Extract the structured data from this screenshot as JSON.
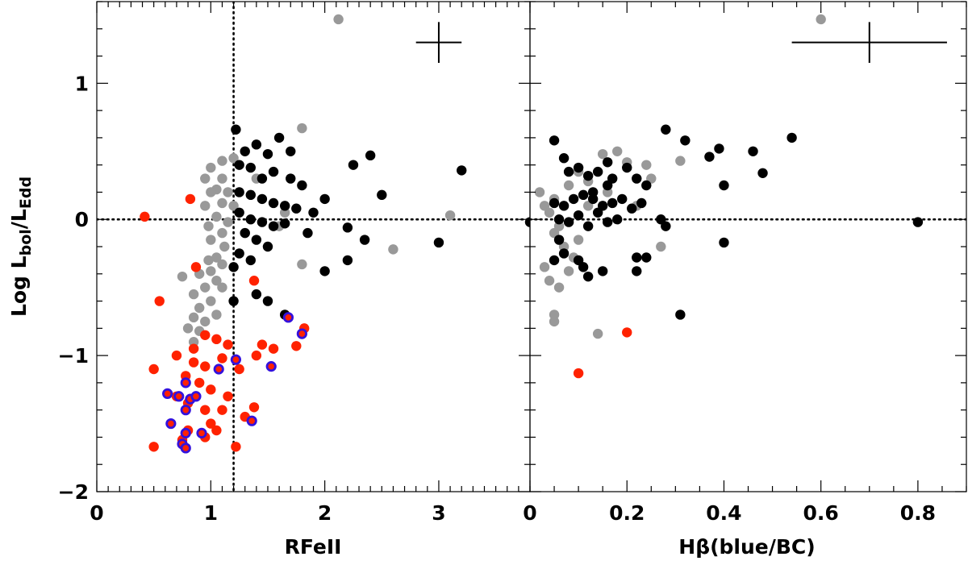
{
  "figure": {
    "ylabel": "Log L_bol/L_Edd",
    "ylabel_parts": {
      "log": "Log ",
      "l1": "L",
      "s1": "bol",
      "sep": "/",
      "l2": "L",
      "s2": "Edd"
    },
    "colors": {
      "gray": "#999999",
      "black": "#000000",
      "red": "#ff2200",
      "blue_ring": "#3311dd",
      "axis": "#000000"
    }
  },
  "chart_data": [
    {
      "type": "scatter",
      "xlabel": "RFeII",
      "ylabel": "Log L_bol/L_Edd",
      "xlim": [
        0,
        3.8
      ],
      "ylim": [
        -2,
        1.6
      ],
      "xticks": [
        0,
        1,
        2,
        3
      ],
      "xtick_labels": [
        "0",
        "1",
        "2",
        "3"
      ],
      "yticks": [
        -2,
        -1,
        0,
        1
      ],
      "ytick_labels": [
        "−2",
        "−1",
        "0",
        "1"
      ],
      "grid": false,
      "reference_lines": {
        "vertical_x": 1.2,
        "horizontal_y": 0
      },
      "error_bar": {
        "x": 3.0,
        "y": 1.3,
        "xerr": 0.2,
        "yerr": 0.15
      },
      "series": [
        {
          "color_role": "gray",
          "points": [
            [
              2.12,
              1.47
            ],
            [
              1.8,
              0.67
            ],
            [
              1.2,
              0.45
            ],
            [
              1.1,
              0.43
            ],
            [
              1.0,
              0.38
            ],
            [
              0.95,
              0.3
            ],
            [
              1.1,
              0.3
            ],
            [
              1.05,
              0.22
            ],
            [
              1.0,
              0.2
            ],
            [
              1.15,
              0.2
            ],
            [
              0.95,
              0.1
            ],
            [
              1.1,
              0.12
            ],
            [
              1.05,
              0.02
            ],
            [
              0.98,
              -0.05
            ],
            [
              1.15,
              -0.02
            ],
            [
              1.1,
              -0.1
            ],
            [
              1.0,
              -0.15
            ],
            [
              1.12,
              -0.2
            ],
            [
              1.05,
              -0.28
            ],
            [
              0.98,
              -0.3
            ],
            [
              1.1,
              -0.33
            ],
            [
              1.0,
              -0.38
            ],
            [
              0.9,
              -0.4
            ],
            [
              0.75,
              -0.42
            ],
            [
              1.05,
              -0.45
            ],
            [
              0.95,
              -0.5
            ],
            [
              1.1,
              -0.5
            ],
            [
              0.85,
              -0.55
            ],
            [
              1.0,
              -0.6
            ],
            [
              0.9,
              -0.65
            ],
            [
              1.05,
              -0.7
            ],
            [
              0.85,
              -0.72
            ],
            [
              0.95,
              -0.75
            ],
            [
              0.8,
              -0.8
            ],
            [
              0.9,
              -0.82
            ],
            [
              0.85,
              -0.9
            ],
            [
              1.8,
              -0.33
            ],
            [
              1.65,
              0.05
            ],
            [
              1.4,
              0.3
            ],
            [
              1.6,
              -0.05
            ],
            [
              2.6,
              -0.22
            ],
            [
              3.1,
              0.03
            ],
            [
              1.3,
              -0.1
            ],
            [
              1.2,
              0.1
            ]
          ]
        },
        {
          "color_role": "black",
          "points": [
            [
              1.22,
              0.66
            ],
            [
              1.3,
              0.5
            ],
            [
              1.4,
              0.55
            ],
            [
              1.5,
              0.48
            ],
            [
              1.6,
              0.6
            ],
            [
              1.7,
              0.5
            ],
            [
              1.25,
              0.4
            ],
            [
              1.35,
              0.38
            ],
            [
              1.45,
              0.3
            ],
            [
              1.55,
              0.35
            ],
            [
              1.7,
              0.3
            ],
            [
              1.8,
              0.25
            ],
            [
              1.25,
              0.2
            ],
            [
              1.35,
              0.18
            ],
            [
              1.45,
              0.15
            ],
            [
              1.55,
              0.12
            ],
            [
              1.65,
              0.1
            ],
            [
              1.75,
              0.08
            ],
            [
              1.25,
              0.05
            ],
            [
              1.35,
              0.0
            ],
            [
              1.45,
              -0.02
            ],
            [
              1.55,
              -0.05
            ],
            [
              1.65,
              -0.03
            ],
            [
              1.3,
              -0.1
            ],
            [
              1.4,
              -0.15
            ],
            [
              1.5,
              -0.2
            ],
            [
              1.25,
              -0.25
            ],
            [
              1.35,
              -0.3
            ],
            [
              1.2,
              -0.35
            ],
            [
              1.4,
              -0.55
            ],
            [
              1.5,
              -0.6
            ],
            [
              1.65,
              -0.7
            ],
            [
              1.2,
              -0.6
            ],
            [
              2.0,
              0.15
            ],
            [
              2.0,
              -0.38
            ],
            [
              2.2,
              -0.3
            ],
            [
              2.25,
              0.4
            ],
            [
              2.4,
              0.47
            ],
            [
              2.5,
              0.18
            ],
            [
              2.2,
              -0.06
            ],
            [
              2.35,
              -0.15
            ],
            [
              3.0,
              -0.17
            ],
            [
              3.2,
              0.36
            ],
            [
              3.8,
              -0.02
            ],
            [
              1.9,
              0.05
            ],
            [
              1.85,
              -0.1
            ]
          ]
        },
        {
          "color_role": "red",
          "points": [
            [
              0.42,
              0.02
            ],
            [
              0.82,
              0.15
            ],
            [
              0.87,
              -0.35
            ],
            [
              1.38,
              -0.45
            ],
            [
              0.55,
              -0.6
            ],
            [
              0.95,
              -0.85
            ],
            [
              1.05,
              -0.88
            ],
            [
              0.85,
              -0.95
            ],
            [
              1.15,
              -0.92
            ],
            [
              1.45,
              -0.92
            ],
            [
              1.55,
              -0.95
            ],
            [
              1.75,
              -0.93
            ],
            [
              1.82,
              -0.8
            ],
            [
              0.7,
              -1.0
            ],
            [
              0.85,
              -1.05
            ],
            [
              0.95,
              -1.08
            ],
            [
              1.1,
              -1.02
            ],
            [
              1.25,
              -1.1
            ],
            [
              1.4,
              -1.0
            ],
            [
              0.5,
              -1.1
            ],
            [
              0.78,
              -1.15
            ],
            [
              0.9,
              -1.2
            ],
            [
              1.0,
              -1.25
            ],
            [
              1.15,
              -1.3
            ],
            [
              0.7,
              -1.3
            ],
            [
              0.8,
              -1.35
            ],
            [
              0.95,
              -1.4
            ],
            [
              1.1,
              -1.4
            ],
            [
              1.3,
              -1.45
            ],
            [
              1.38,
              -1.38
            ],
            [
              0.65,
              -1.5
            ],
            [
              0.8,
              -1.55
            ],
            [
              0.95,
              -1.6
            ],
            [
              1.05,
              -1.55
            ],
            [
              0.5,
              -1.67
            ],
            [
              1.22,
              -1.67
            ],
            [
              0.75,
              -1.62
            ],
            [
              1.0,
              -1.5
            ]
          ]
        },
        {
          "color_role": "blue_ring",
          "points": [
            [
              0.62,
              -1.28
            ],
            [
              0.72,
              -1.3
            ],
            [
              0.78,
              -1.2
            ],
            [
              0.82,
              -1.32
            ],
            [
              0.87,
              -1.3
            ],
            [
              0.78,
              -1.4
            ],
            [
              0.65,
              -1.5
            ],
            [
              0.75,
              -1.65
            ],
            [
              0.78,
              -1.68
            ],
            [
              0.78,
              -1.57
            ],
            [
              0.92,
              -1.57
            ],
            [
              1.07,
              -1.1
            ],
            [
              1.22,
              -1.03
            ],
            [
              1.36,
              -1.48
            ],
            [
              1.53,
              -1.08
            ],
            [
              1.68,
              -0.72
            ],
            [
              1.8,
              -0.84
            ]
          ]
        }
      ]
    },
    {
      "type": "scatter",
      "xlabel": "Hβ(blue/BC)",
      "ylabel": "",
      "xlim": [
        0,
        0.9
      ],
      "ylim": [
        -2,
        1.6
      ],
      "xticks": [
        0,
        0.2,
        0.4,
        0.6,
        0.8
      ],
      "xtick_labels": [
        "0",
        "0.2",
        "0.4",
        "0.6",
        "0.8"
      ],
      "yticks": [
        -2,
        -1,
        0,
        1
      ],
      "grid": false,
      "reference_lines": {
        "horizontal_y": 0
      },
      "error_bar": {
        "x": 0.7,
        "y": 1.3,
        "xerr": 0.16,
        "yerr": 0.15
      },
      "series": [
        {
          "color_role": "gray",
          "points": [
            [
              0.6,
              1.47
            ],
            [
              0.02,
              0.2
            ],
            [
              0.05,
              0.15
            ],
            [
              0.04,
              0.05
            ],
            [
              0.03,
              0.1
            ],
            [
              0.06,
              -0.05
            ],
            [
              0.05,
              -0.1
            ],
            [
              0.08,
              0.25
            ],
            [
              0.1,
              0.35
            ],
            [
              0.12,
              0.28
            ],
            [
              0.15,
              0.48
            ],
            [
              0.18,
              0.5
            ],
            [
              0.2,
              0.42
            ],
            [
              0.24,
              0.4
            ],
            [
              0.07,
              -0.2
            ],
            [
              0.09,
              -0.28
            ],
            [
              0.03,
              -0.35
            ],
            [
              0.04,
              -0.45
            ],
            [
              0.06,
              -0.5
            ],
            [
              0.05,
              -0.7
            ],
            [
              0.05,
              -0.75
            ],
            [
              0.14,
              -0.84
            ],
            [
              0.12,
              0.1
            ],
            [
              0.16,
              0.2
            ],
            [
              0.08,
              -0.38
            ],
            [
              0.1,
              -0.15
            ],
            [
              0.22,
              0.1
            ],
            [
              0.25,
              0.3
            ],
            [
              0.31,
              0.43
            ],
            [
              0.27,
              -0.2
            ]
          ]
        },
        {
          "color_role": "black",
          "points": [
            [
              0.05,
              0.58
            ],
            [
              0.07,
              0.45
            ],
            [
              0.08,
              0.35
            ],
            [
              0.1,
              0.38
            ],
            [
              0.12,
              0.32
            ],
            [
              0.14,
              0.35
            ],
            [
              0.16,
              0.42
            ],
            [
              0.17,
              0.3
            ],
            [
              0.2,
              0.38
            ],
            [
              0.22,
              0.3
            ],
            [
              0.24,
              0.25
            ],
            [
              0.28,
              0.66
            ],
            [
              0.32,
              0.58
            ],
            [
              0.37,
              0.46
            ],
            [
              0.39,
              0.52
            ],
            [
              0.4,
              0.25
            ],
            [
              0.46,
              0.5
            ],
            [
              0.48,
              0.34
            ],
            [
              0.54,
              0.6
            ],
            [
              0.05,
              0.12
            ],
            [
              0.07,
              0.1
            ],
            [
              0.09,
              0.15
            ],
            [
              0.11,
              0.18
            ],
            [
              0.13,
              0.2
            ],
            [
              0.15,
              0.1
            ],
            [
              0.17,
              0.12
            ],
            [
              0.19,
              0.15
            ],
            [
              0.21,
              0.08
            ],
            [
              0.23,
              0.12
            ],
            [
              0.06,
              0.0
            ],
            [
              0.08,
              -0.02
            ],
            [
              0.1,
              0.03
            ],
            [
              0.12,
              -0.05
            ],
            [
              0.14,
              0.05
            ],
            [
              0.16,
              -0.02
            ],
            [
              0.18,
              0.0
            ],
            [
              0.06,
              -0.15
            ],
            [
              0.07,
              -0.25
            ],
            [
              0.05,
              -0.3
            ],
            [
              0.1,
              -0.3
            ],
            [
              0.11,
              -0.35
            ],
            [
              0.12,
              -0.42
            ],
            [
              0.15,
              -0.38
            ],
            [
              0.22,
              -0.28
            ],
            [
              0.22,
              -0.38
            ],
            [
              0.24,
              -0.28
            ],
            [
              0.27,
              0.0
            ],
            [
              0.28,
              -0.05
            ],
            [
              0.31,
              -0.7
            ],
            [
              0.4,
              -0.17
            ],
            [
              0.8,
              -0.02
            ],
            [
              0.13,
              0.15
            ],
            [
              0.16,
              0.25
            ]
          ]
        },
        {
          "color_role": "red",
          "points": [
            [
              0.1,
              -1.13
            ],
            [
              0.2,
              -0.83
            ]
          ]
        }
      ]
    }
  ]
}
